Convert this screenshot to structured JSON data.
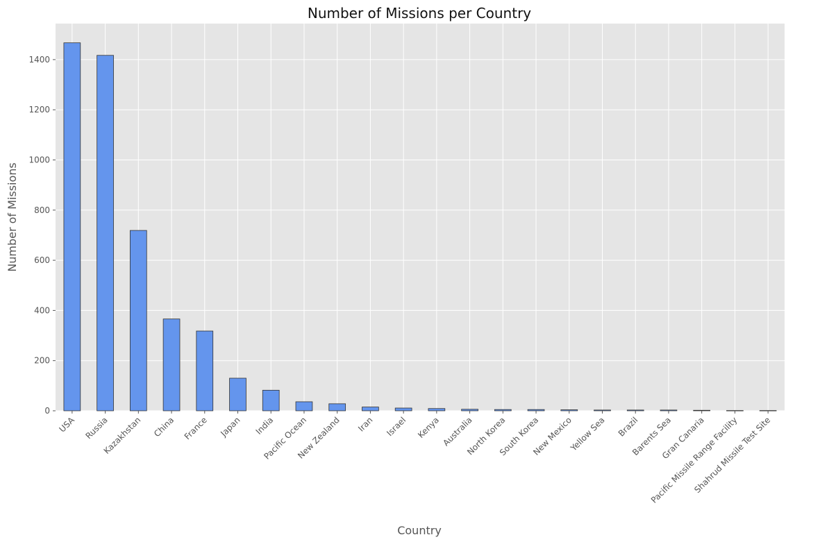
{
  "chart_data": {
    "type": "bar",
    "title": "Number of Missions per Country",
    "xlabel": "Country",
    "ylabel": "Number of Missions",
    "ylim": [
      0,
      1540
    ],
    "yticks": [
      0,
      200,
      400,
      600,
      800,
      1000,
      1200,
      1400
    ],
    "grid": true,
    "categories": [
      "USA",
      "Russia",
      "Kazakhstan",
      "China",
      "France",
      "Japan",
      "India",
      "Pacific Ocean",
      "New Zealand",
      "Iran",
      "Israel",
      "Kenya",
      "Australia",
      "North Korea",
      "South Korea",
      "New Mexico",
      "Yellow Sea",
      "Brazil",
      "Barents Sea",
      "Gran Canaria",
      "Pacific Missile Range Facility",
      "Shahrud Missile Test Site"
    ],
    "values": [
      1467,
      1417,
      719,
      366,
      318,
      130,
      82,
      36,
      28,
      15,
      11,
      9,
      6,
      5,
      5,
      4,
      3,
      3,
      3,
      2,
      1,
      1
    ],
    "colors": {
      "bar_fill": "#6495ED",
      "bar_edge": "#333333",
      "plot_background": "#E5E5E5",
      "grid": "#FFFFFF"
    }
  }
}
